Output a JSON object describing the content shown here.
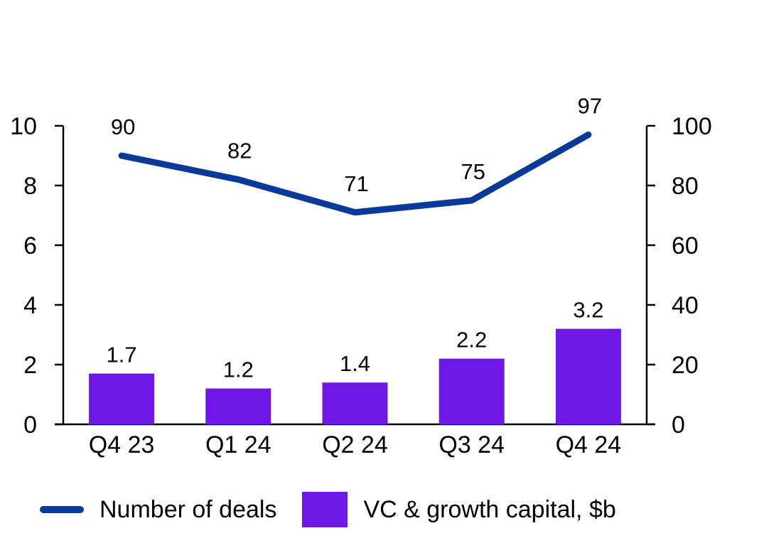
{
  "chart_data": {
    "type": "bar+line",
    "title": "",
    "categories": [
      "Q4 23",
      "Q1 24",
      "Q2 24",
      "Q3 24",
      "Q4 24"
    ],
    "series": [
      {
        "name": "VC & growth capital, $b",
        "type": "bar",
        "axis": "left",
        "color": "#6f17e6",
        "values": [
          1.7,
          1.2,
          1.4,
          2.2,
          3.2
        ],
        "labels": [
          "1.7",
          "1.2",
          "1.4",
          "2.2",
          "3.2"
        ]
      },
      {
        "name": "Number of deals",
        "type": "line",
        "axis": "right",
        "color": "#0a3a99",
        "values": [
          90,
          82,
          71,
          75,
          97
        ],
        "labels": [
          "90",
          "82",
          "71",
          "75",
          "97"
        ]
      }
    ],
    "y_left": {
      "range": [
        0,
        10
      ],
      "ticks": [
        0,
        2,
        4,
        6,
        8,
        10
      ],
      "tick_labels": [
        "0",
        "2",
        "4",
        "6",
        "8",
        "10"
      ]
    },
    "y_right": {
      "range": [
        0,
        100
      ],
      "ticks": [
        0,
        20,
        40,
        60,
        80,
        100
      ],
      "tick_labels": [
        "0",
        "20",
        "40",
        "60",
        "80",
        "100"
      ]
    },
    "xlabel": "",
    "ylabel_left": "",
    "ylabel_right": "",
    "grid": false,
    "legend_position": "bottom"
  },
  "legend": {
    "items": [
      {
        "label": "Number of deals",
        "kind": "line",
        "color": "#0a3a99"
      },
      {
        "label": "VC & growth capital, $b",
        "kind": "box",
        "color": "#6f17e6"
      }
    ]
  }
}
